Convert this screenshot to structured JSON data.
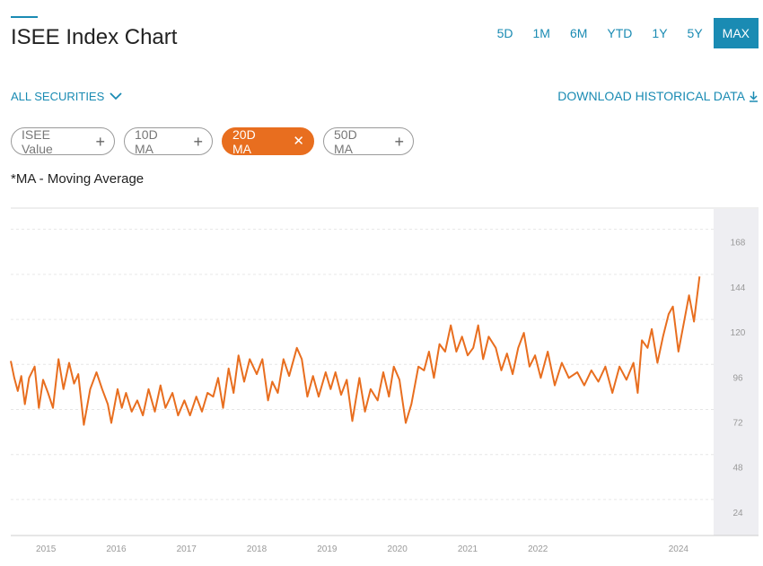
{
  "header": {
    "title": "ISEE Index Chart",
    "ranges": [
      "5D",
      "1M",
      "6M",
      "YTD",
      "1Y",
      "5Y",
      "MAX"
    ],
    "active_range": "MAX"
  },
  "securities": {
    "label": "ALL SECURITIES"
  },
  "download": {
    "label": "DOWNLOAD HISTORICAL DATA"
  },
  "pills": [
    {
      "label": "ISEE Value",
      "active": false
    },
    {
      "label": "10D MA",
      "active": false
    },
    {
      "label": "20D MA",
      "active": true
    },
    {
      "label": "50D MA",
      "active": false
    }
  ],
  "note": "*MA - Moving Average",
  "colors": {
    "accent": "#1a8bb3",
    "series": "#e86e1f"
  },
  "chart_data": {
    "type": "line",
    "ylim": [
      12,
      186
    ],
    "yticks": [
      24,
      48,
      72,
      96,
      120,
      144,
      168
    ],
    "xlim": [
      2014.5,
      2024.5
    ],
    "xticks": [
      2015,
      2016,
      2017,
      2018,
      2019,
      2020,
      2021,
      2022,
      2024
    ],
    "grid": true,
    "series": [
      {
        "name": "20D MA",
        "color": "#e86e1f",
        "points": [
          [
            2014.5,
            105
          ],
          [
            2014.55,
            96
          ],
          [
            2014.6,
            89
          ],
          [
            2014.65,
            97
          ],
          [
            2014.7,
            82
          ],
          [
            2014.76,
            96
          ],
          [
            2014.84,
            102
          ],
          [
            2014.9,
            80
          ],
          [
            2014.96,
            95
          ],
          [
            2015.03,
            88
          ],
          [
            2015.1,
            80
          ],
          [
            2015.18,
            106
          ],
          [
            2015.25,
            90
          ],
          [
            2015.33,
            104
          ],
          [
            2015.4,
            93
          ],
          [
            2015.46,
            98
          ],
          [
            2015.54,
            71
          ],
          [
            2015.63,
            90
          ],
          [
            2015.72,
            99
          ],
          [
            2015.8,
            90
          ],
          [
            2015.88,
            82
          ],
          [
            2015.93,
            72
          ],
          [
            2016.02,
            90
          ],
          [
            2016.08,
            80
          ],
          [
            2016.14,
            88
          ],
          [
            2016.22,
            78
          ],
          [
            2016.3,
            84
          ],
          [
            2016.38,
            76
          ],
          [
            2016.46,
            90
          ],
          [
            2016.55,
            78
          ],
          [
            2016.63,
            92
          ],
          [
            2016.7,
            80
          ],
          [
            2016.8,
            88
          ],
          [
            2016.88,
            76
          ],
          [
            2016.97,
            84
          ],
          [
            2017.05,
            76
          ],
          [
            2017.14,
            86
          ],
          [
            2017.22,
            78
          ],
          [
            2017.3,
            88
          ],
          [
            2017.38,
            86
          ],
          [
            2017.45,
            96
          ],
          [
            2017.52,
            80
          ],
          [
            2017.6,
            101
          ],
          [
            2017.67,
            88
          ],
          [
            2017.74,
            108
          ],
          [
            2017.82,
            94
          ],
          [
            2017.9,
            106
          ],
          [
            2018.0,
            98
          ],
          [
            2018.08,
            106
          ],
          [
            2018.16,
            84
          ],
          [
            2018.22,
            94
          ],
          [
            2018.3,
            88
          ],
          [
            2018.38,
            106
          ],
          [
            2018.46,
            97
          ],
          [
            2018.57,
            112
          ],
          [
            2018.64,
            106
          ],
          [
            2018.72,
            86
          ],
          [
            2018.8,
            97
          ],
          [
            2018.88,
            86
          ],
          [
            2018.98,
            99
          ],
          [
            2019.05,
            90
          ],
          [
            2019.12,
            99
          ],
          [
            2019.2,
            87
          ],
          [
            2019.28,
            95
          ],
          [
            2019.36,
            73
          ],
          [
            2019.46,
            96
          ],
          [
            2019.54,
            78
          ],
          [
            2019.62,
            90
          ],
          [
            2019.72,
            84
          ],
          [
            2019.8,
            99
          ],
          [
            2019.88,
            86
          ],
          [
            2019.95,
            102
          ],
          [
            2020.03,
            95
          ],
          [
            2020.12,
            72
          ],
          [
            2020.2,
            82
          ],
          [
            2020.3,
            102
          ],
          [
            2020.38,
            100
          ],
          [
            2020.45,
            110
          ],
          [
            2020.52,
            96
          ],
          [
            2020.6,
            114
          ],
          [
            2020.68,
            110
          ],
          [
            2020.76,
            124
          ],
          [
            2020.84,
            110
          ],
          [
            2020.92,
            118
          ],
          [
            2021.0,
            108
          ],
          [
            2021.08,
            112
          ],
          [
            2021.15,
            124
          ],
          [
            2021.22,
            106
          ],
          [
            2021.3,
            118
          ],
          [
            2021.4,
            112
          ],
          [
            2021.48,
            100
          ],
          [
            2021.56,
            109
          ],
          [
            2021.64,
            98
          ],
          [
            2021.72,
            112
          ],
          [
            2021.8,
            120
          ],
          [
            2021.88,
            102
          ],
          [
            2021.96,
            108
          ],
          [
            2022.04,
            96
          ],
          [
            2022.14,
            110
          ],
          [
            2022.24,
            92
          ],
          [
            2022.34,
            104
          ],
          [
            2022.44,
            96
          ],
          [
            2022.56,
            99
          ],
          [
            2022.66,
            92
          ],
          [
            2022.76,
            100
          ],
          [
            2022.86,
            94
          ],
          [
            2022.96,
            102
          ],
          [
            2023.06,
            88
          ],
          [
            2023.16,
            102
          ],
          [
            2023.26,
            95
          ],
          [
            2023.36,
            104
          ],
          [
            2023.42,
            88
          ],
          [
            2023.48,
            116
          ],
          [
            2023.56,
            112
          ],
          [
            2023.62,
            122
          ],
          [
            2023.7,
            104
          ],
          [
            2023.78,
            118
          ],
          [
            2023.86,
            130
          ],
          [
            2023.92,
            134
          ],
          [
            2024.0,
            110
          ],
          [
            2024.08,
            126
          ],
          [
            2024.15,
            140
          ],
          [
            2024.22,
            126
          ],
          [
            2024.3,
            150
          ]
        ]
      }
    ]
  }
}
